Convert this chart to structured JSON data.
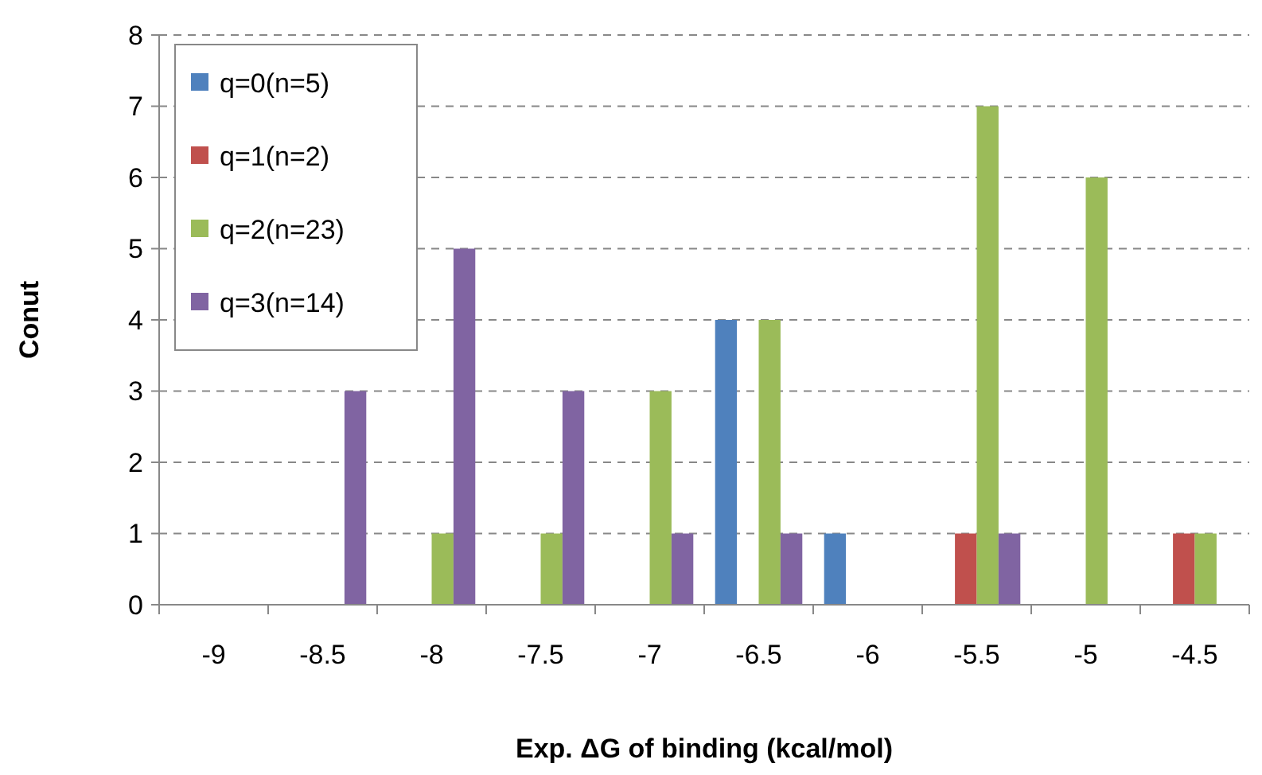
{
  "chart_data": {
    "type": "bar",
    "xlabel": "Exp. ΔG of binding (kcal/mol)",
    "ylabel": "Conut",
    "categories": [
      "-9",
      "-8.5",
      "-8",
      "-7.5",
      "-7",
      "-6.5",
      "-6",
      "-5.5",
      "-5",
      "-4.5"
    ],
    "series": [
      {
        "name": "q=0(n=5)",
        "color": "#4f81bd",
        "values": [
          0,
          0,
          0,
          0,
          0,
          4,
          1,
          0,
          0,
          0
        ]
      },
      {
        "name": "q=1(n=2)",
        "color": "#c0504d",
        "values": [
          0,
          0,
          0,
          0,
          0,
          0,
          0,
          1,
          0,
          1
        ]
      },
      {
        "name": "q=2(n=23)",
        "color": "#9bbb59",
        "values": [
          0,
          0,
          1,
          1,
          3,
          4,
          0,
          7,
          6,
          1
        ]
      },
      {
        "name": "q=3(n=14)",
        "color": "#8064a2",
        "values": [
          0,
          3,
          5,
          3,
          1,
          1,
          0,
          1,
          0,
          0
        ]
      }
    ],
    "ylim": [
      0,
      8
    ],
    "yticks": [
      0,
      1,
      2,
      3,
      4,
      5,
      6,
      7,
      8
    ],
    "grid": "y",
    "legend": "top left"
  }
}
